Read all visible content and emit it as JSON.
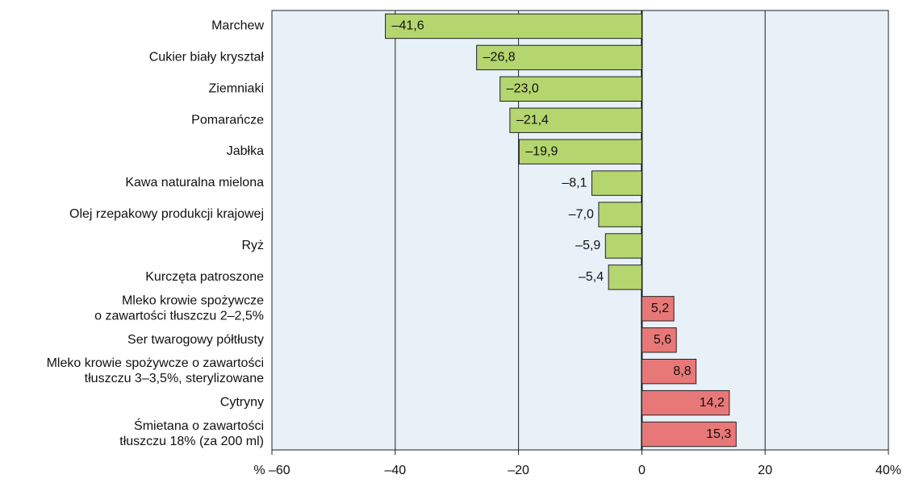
{
  "chart_data": {
    "type": "hbar",
    "categories": [
      "Marchew",
      "Cukier biały kryształ",
      "Ziemniaki",
      "Pomarańcze",
      "Jabłka",
      "Kawa naturalna mielona",
      "Olej rzepakowy produkcji krajowej",
      "Ryż",
      "Kurczęta patroszone",
      "Mleko krowie spożywcze\no zawartości tłuszczu 2–2,5%",
      "Ser twarogowy półtłusty",
      "Mleko krowie spożywcze o zawartości\ntłuszczu 3–3,5%, sterylizowane",
      "Cytryny",
      "Śmietana o zawartości\ntłuszczu 18% (za 200 ml)"
    ],
    "values": [
      -41.6,
      -26.8,
      -23.0,
      -21.4,
      -19.9,
      -8.1,
      -7.0,
      -5.9,
      -5.4,
      5.2,
      5.6,
      8.8,
      14.2,
      15.3
    ],
    "value_labels": [
      "–41,6",
      "–26,8",
      "–23,0",
      "–21,4",
      "–19,9",
      "–8,1",
      "–7,0",
      "–5,9",
      "–5,4",
      "5,2",
      "5,6",
      "8,8",
      "14,2",
      "15,3"
    ],
    "colors": {
      "negative": "#b5d56e",
      "positive": "#e87878"
    },
    "xlim": [
      -60,
      40
    ],
    "xticks": [
      {
        "value": -60,
        "label": "% –60"
      },
      {
        "value": -40,
        "label": "–40"
      },
      {
        "value": -20,
        "label": "–20"
      },
      0,
      20,
      {
        "value": 40,
        "label": "40%"
      }
    ],
    "grid": true
  }
}
